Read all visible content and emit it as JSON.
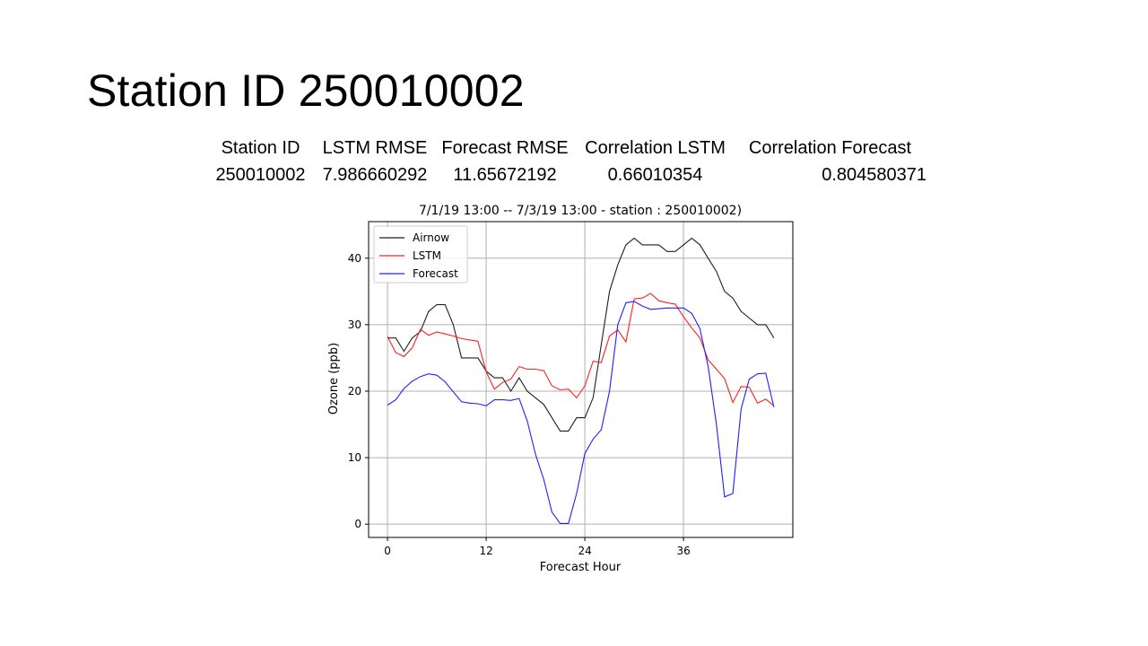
{
  "slide": {
    "title": "Station ID 250010002"
  },
  "stats": {
    "headers": [
      "Station ID",
      "LSTM RMSE",
      "Forecast RMSE",
      "Correlation LSTM",
      "Correlation Forecast"
    ],
    "row": [
      "250010002",
      "7.986660292",
      "11.65672192",
      "0.66010354",
      "0.804580371"
    ]
  },
  "chart_data": {
    "type": "line",
    "title": "7/1/19 13:00 -- 7/3/19 13:00 - station : 250010002)",
    "xlabel": "Forecast Hour",
    "ylabel": "Ozone (ppb)",
    "xlim": [
      -2.3,
      49.3
    ],
    "ylim": [
      -2,
      45.5
    ],
    "xticks": [
      0,
      12,
      24,
      36
    ],
    "yticks": [
      0,
      10,
      20,
      30,
      40
    ],
    "grid": true,
    "legend_position": "top-left",
    "x": [
      0,
      1,
      2,
      3,
      4,
      5,
      6,
      7,
      8,
      9,
      10,
      11,
      12,
      13,
      14,
      15,
      16,
      17,
      18,
      19,
      20,
      21,
      22,
      23,
      24,
      25,
      26,
      27,
      28,
      29,
      30,
      31,
      32,
      33,
      34,
      35,
      36,
      37,
      38,
      39,
      40,
      41,
      42,
      43,
      44,
      45,
      46,
      47
    ],
    "series": [
      {
        "name": "Airnow",
        "color": "#1f1f1f",
        "values": [
          28,
          28,
          26,
          28,
          29,
          32,
          33,
          33,
          30,
          25,
          25,
          25,
          23,
          22,
          22,
          20,
          22,
          20,
          19,
          18,
          16,
          14,
          14,
          16,
          16,
          19,
          27,
          35,
          39,
          42,
          43,
          42,
          42,
          42,
          41,
          41,
          42,
          43,
          42,
          40,
          38,
          35,
          34,
          32,
          31,
          30,
          30,
          28
        ]
      },
      {
        "name": "LSTM",
        "color": "#ff2020",
        "values": [
          28.2,
          25.8,
          25.2,
          26.5,
          29.3,
          28.4,
          28.9,
          28.6,
          28.3,
          27.9,
          27.7,
          27.5,
          22.9,
          20.3,
          21.3,
          21.8,
          23.7,
          23.3,
          23.3,
          23.1,
          20.8,
          20.2,
          20.3,
          19,
          20.8,
          24.5,
          24.3,
          28.3,
          29.2,
          27.4,
          33.9,
          34,
          34.7,
          33.6,
          33.3,
          33.1,
          31.2,
          29.5,
          28,
          24.7,
          23.3,
          21.9,
          18.3,
          20.7,
          20.6,
          18.2,
          18.8,
          17.8
        ]
      },
      {
        "name": "Forecast",
        "color": "#2020ff",
        "values": [
          17.9,
          18.7,
          20.4,
          21.5,
          22.2,
          22.6,
          22.4,
          21.4,
          19.9,
          18.4,
          18.2,
          18.1,
          17.8,
          18.7,
          18.7,
          18.6,
          18.9,
          15.5,
          10.5,
          6.7,
          1.8,
          0.1,
          0.1,
          4.6,
          10.6,
          12.8,
          14.2,
          20,
          30,
          33.3,
          33.5,
          32.8,
          32.3,
          32.4,
          32.5,
          32.5,
          32.5,
          31.7,
          29.4,
          23.7,
          15,
          4.1,
          4.6,
          17.3,
          21.8,
          22.6,
          22.7,
          17.6
        ]
      }
    ]
  }
}
